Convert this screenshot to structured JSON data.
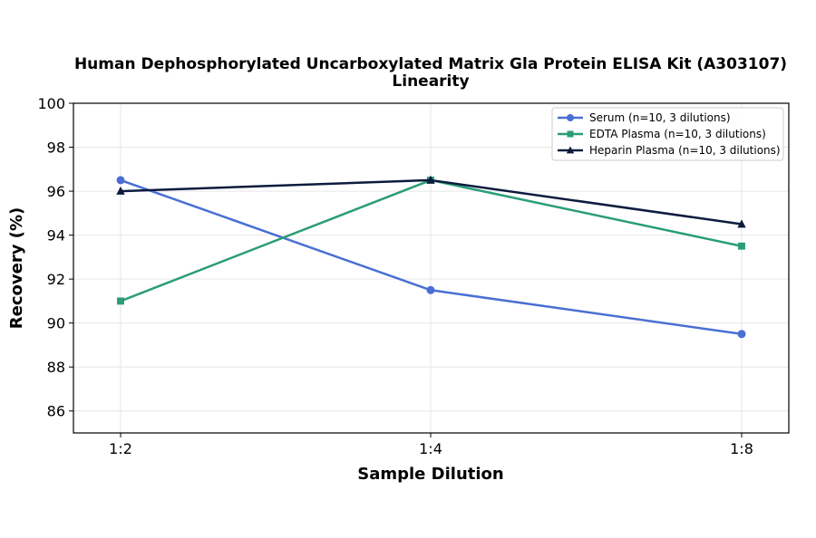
{
  "chart_data": {
    "type": "line",
    "title": "Human Dephosphorylated Uncarboxylated Matrix Gla Protein ELISA Kit (A303107)",
    "subtitle": "Linearity",
    "xlabel": "Sample Dilution",
    "ylabel": "Recovery (%)",
    "categories": [
      "1:2",
      "1:4",
      "1:8"
    ],
    "ylim": [
      85,
      100
    ],
    "yticks": [
      86,
      88,
      90,
      92,
      94,
      96,
      98,
      100
    ],
    "grid": true,
    "legend_position": "top-right",
    "series": [
      {
        "name": "Serum (n=10, 3 dilutions)",
        "values": [
          96.5,
          91.5,
          89.5
        ],
        "color": "#4a6fd4",
        "marker": "circle"
      },
      {
        "name": "EDTA Plasma (n=10, 3 dilutions)",
        "values": [
          91.0,
          96.5,
          93.5
        ],
        "color": "#2a9d78",
        "marker": "square"
      },
      {
        "name": "Heparin Plasma (n=10, 3 dilutions)",
        "values": [
          96.0,
          96.5,
          94.5
        ],
        "color": "#0d1b3e",
        "marker": "triangle"
      }
    ]
  }
}
